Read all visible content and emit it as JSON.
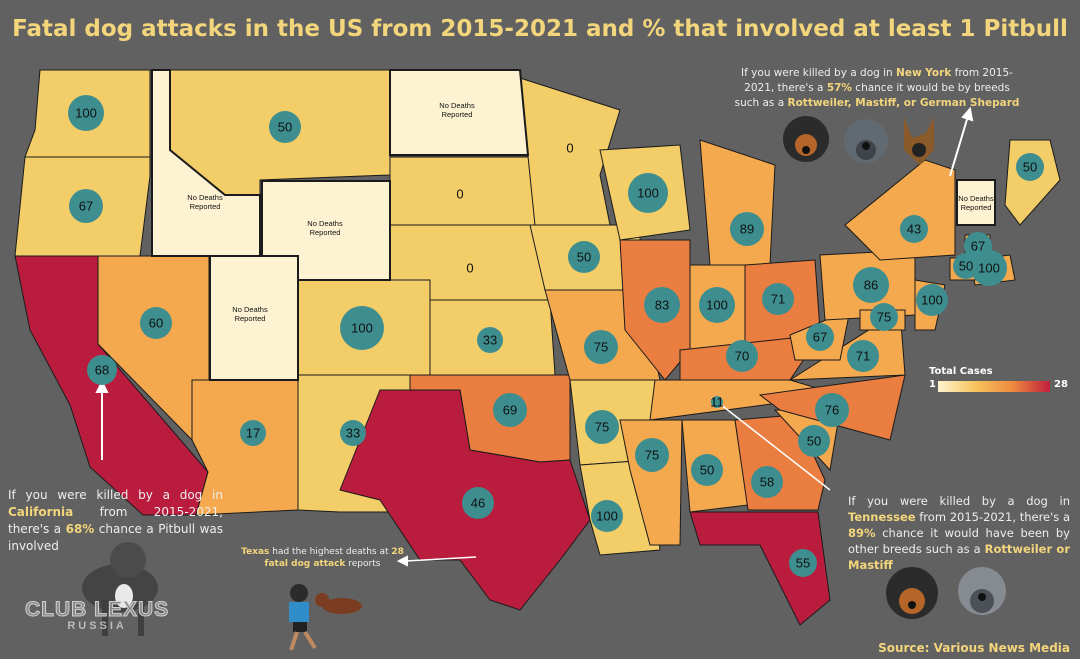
{
  "title": "Fatal dog attacks in the US from 2015-2021 and % that involved at least 1 Pitbull",
  "no_deaths_label": "No Deaths Reported",
  "legend": {
    "title": "Total Cases",
    "min": "1",
    "max": "28"
  },
  "source": "Source: Various News Media",
  "watermark": {
    "line1": "CLUB LEXUS",
    "line2": "RUSSIA"
  },
  "notes": {
    "ny": {
      "p1": "If you were killed by a dog in ",
      "state": "New York",
      "p2": " from 2015-2021, there's a ",
      "pct": "57%",
      "p3": " chance it would be by breeds such as a ",
      "breeds": "Rottweiler, Mastiff, or German Shepard"
    },
    "ca": {
      "p1": "If you were killed by a dog in ",
      "state": "California",
      "p2": " from 2015-2021, there's a ",
      "pct": "68%",
      "p3": " chance a Pitbull was involved"
    },
    "tn": {
      "p1": "If you were killed by a dog in ",
      "state": "Tennessee",
      "p2": " from 2015-2021, there's a ",
      "pct": "89%",
      "p3": " chance it would have been by other breeds such as a ",
      "breeds": "Rottweiler or Mastiff"
    },
    "tx": {
      "state": "Texas",
      "p1": " had the highest deaths at ",
      "deaths": "28 fatal dog attack",
      "p2": " reports"
    }
  },
  "colors": {
    "background": "#616161",
    "title": "#f3d57c",
    "circle": "#3e8e8f",
    "none": "#fdf3d3",
    "low": "#f2cd68",
    "mid": "#f5a94e",
    "high": "#ea7d40",
    "max": "#ba1c3e"
  },
  "states": [
    {
      "id": "WA",
      "pct": "100"
    },
    {
      "id": "OR",
      "pct": "67"
    },
    {
      "id": "CA",
      "pct": "68"
    },
    {
      "id": "NV",
      "pct": "60"
    },
    {
      "id": "AZ",
      "pct": "17"
    },
    {
      "id": "MT",
      "pct": "50"
    },
    {
      "id": "CO",
      "pct": "100"
    },
    {
      "id": "NM",
      "pct": "33"
    },
    {
      "id": "SD",
      "pct": "0"
    },
    {
      "id": "NE",
      "pct": "0"
    },
    {
      "id": "KS",
      "pct": "33"
    },
    {
      "id": "OK",
      "pct": "69"
    },
    {
      "id": "TX",
      "pct": "46"
    },
    {
      "id": "MN",
      "pct": "0"
    },
    {
      "id": "IA",
      "pct": "50"
    },
    {
      "id": "MO",
      "pct": "75"
    },
    {
      "id": "AR",
      "pct": "75"
    },
    {
      "id": "LA",
      "pct": "100"
    },
    {
      "id": "WI",
      "pct": "100"
    },
    {
      "id": "IL",
      "pct": "83"
    },
    {
      "id": "MI",
      "pct": "89"
    },
    {
      "id": "IN",
      "pct": "100"
    },
    {
      "id": "OH",
      "pct": "71"
    },
    {
      "id": "KY",
      "pct": "70"
    },
    {
      "id": "TN",
      "pct": "11"
    },
    {
      "id": "MS",
      "pct": "75"
    },
    {
      "id": "AL",
      "pct": "50"
    },
    {
      "id": "GA",
      "pct": "58"
    },
    {
      "id": "FL",
      "pct": "55"
    },
    {
      "id": "SC",
      "pct": "50"
    },
    {
      "id": "NC",
      "pct": "76"
    },
    {
      "id": "VA",
      "pct": "71"
    },
    {
      "id": "WV",
      "pct": "67"
    },
    {
      "id": "PA",
      "pct": "86"
    },
    {
      "id": "NY",
      "pct": "43"
    },
    {
      "id": "NJ",
      "pct": "100"
    },
    {
      "id": "MD",
      "pct": "75"
    },
    {
      "id": "ME",
      "pct": "50"
    },
    {
      "id": "MA",
      "pct": "100"
    },
    {
      "id": "CT",
      "pct": "50"
    },
    {
      "id": "RI",
      "pct": "67"
    }
  ]
}
